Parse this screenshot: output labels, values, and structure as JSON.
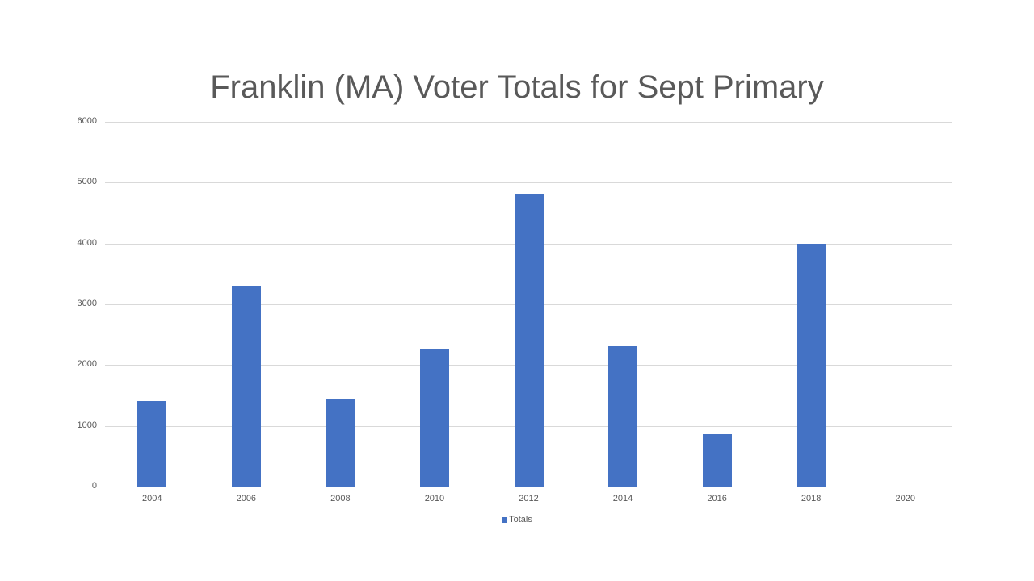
{
  "chart_data": {
    "type": "bar",
    "title": "Franklin (MA) Voter Totals for Sept Primary",
    "xlabel": "",
    "ylabel": "",
    "categories": [
      "2004",
      "2006",
      "2008",
      "2010",
      "2012",
      "2014",
      "2016",
      "2018",
      "2020"
    ],
    "series": [
      {
        "name": "Totals",
        "color": "#4472c4",
        "values": [
          1410,
          3305,
          1435,
          2260,
          4820,
          2310,
          865,
          4000,
          0
        ]
      }
    ],
    "ylim": [
      0,
      6000
    ],
    "yticks": [
      0,
      1000,
      2000,
      3000,
      4000,
      5000,
      6000
    ],
    "grid": true,
    "legend_position": "bottom"
  },
  "legend": {
    "label": "Totals"
  }
}
